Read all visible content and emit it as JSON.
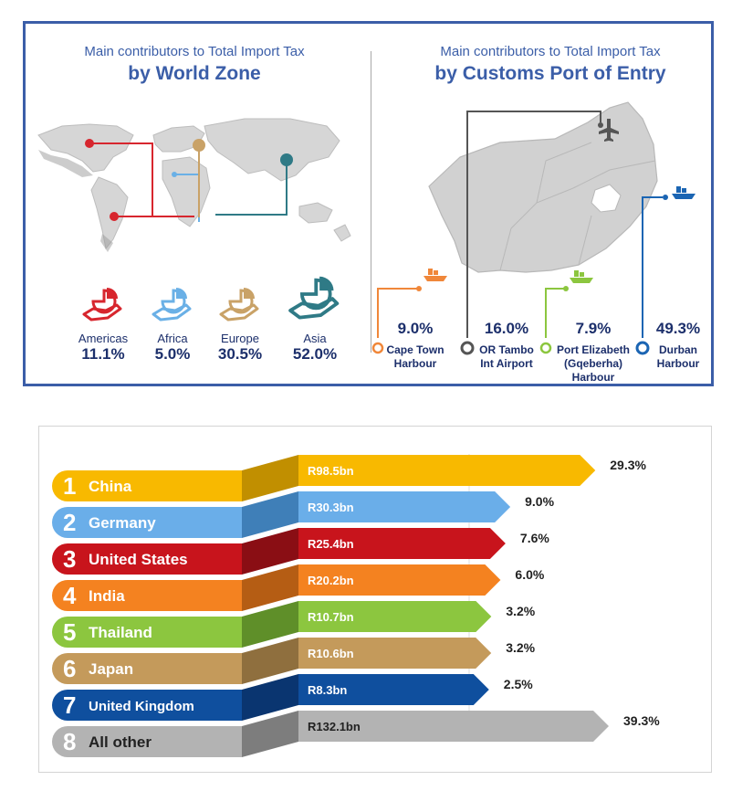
{
  "world_panel": {
    "title_line1": "Main contributors to Total Import Tax",
    "title_line2": "by World Zone",
    "zones": [
      {
        "name": "Americas",
        "value": "11.1%",
        "color": "#d7262e",
        "icon": "hand-pie-icon"
      },
      {
        "name": "Africa",
        "value": "5.0%",
        "color": "#6ab0e6",
        "icon": "hand-pie-icon"
      },
      {
        "name": "Europe",
        "value": "30.5%",
        "color": "#c9a267",
        "icon": "hand-pie-icon"
      },
      {
        "name": "Asia",
        "value": "52.0%",
        "color": "#2f7a86",
        "icon": "hand-pie-icon"
      }
    ]
  },
  "port_panel": {
    "title_line1": "Main contributors to Total Import Tax",
    "title_line2": "by Customs Port of Entry",
    "ports": [
      {
        "value": "9.0%",
        "name_lines": [
          "Cape Town",
          "Harbour"
        ],
        "color": "#f0873a",
        "icon": "ship-icon"
      },
      {
        "value": "16.0%",
        "name_lines": [
          "OR Tambo",
          "Int Airport"
        ],
        "color": "#555555",
        "icon": "airplane-icon"
      },
      {
        "value": "7.9%",
        "name_lines": [
          "Port Elizabeth",
          "(Gqeberha)",
          "Harbour"
        ],
        "color": "#8cc63f",
        "icon": "ship-icon"
      },
      {
        "value": "49.3%",
        "name_lines": [
          "Durban",
          "Harbour"
        ],
        "color": "#1b65b3",
        "icon": "ship-icon"
      }
    ]
  },
  "chart_data": {
    "type": "bar",
    "categories": [
      "China",
      "Germany",
      "United States",
      "India",
      "Thailand",
      "Japan",
      "United Kingdom",
      "All other"
    ],
    "ranks": [
      "1",
      "2",
      "3",
      "4",
      "5",
      "6",
      "7",
      "8"
    ],
    "values": [
      98.5,
      30.3,
      25.4,
      20.2,
      10.7,
      10.6,
      8.3,
      132.1
    ],
    "value_labels": [
      "R98.5bn",
      "R30.3bn",
      "R25.4bn",
      "R20.2bn",
      "R10.7bn",
      "R10.6bn",
      "R8.3bn",
      "R132.1bn"
    ],
    "share_labels": [
      "29.3%",
      "9.0%",
      "7.6%",
      "6.0%",
      "3.2%",
      "3.2%",
      "2.5%",
      "39.3%"
    ],
    "colors": [
      "#f8b900",
      "#6aaee9",
      "#c8141c",
      "#f48220",
      "#8cc63f",
      "#c49a5b",
      "#0f4f9e",
      "#b3b3b3"
    ],
    "dark_colors": [
      "#c18f00",
      "#3f7fb8",
      "#8a0e14",
      "#b55d14",
      "#5f8f29",
      "#8f6f3e",
      "#0a3570",
      "#7d7d7d"
    ]
  }
}
